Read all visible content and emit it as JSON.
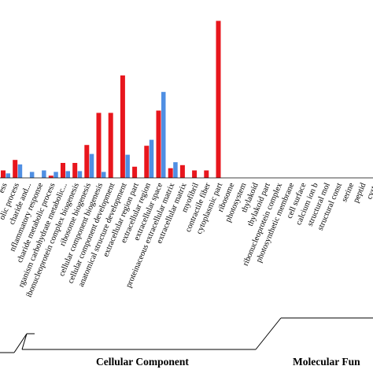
{
  "chart_data": {
    "type": "bar",
    "title": "",
    "xlabel": "",
    "ylabel": "",
    "ylim": [
      0,
      210
    ],
    "grid": false,
    "categories": [
      "ess",
      "olic process",
      "charide and...",
      "nflammatory response",
      "charide metabolic process",
      "rganism carbohydrate metabolic...",
      "ibonucleoprotein complex biogenesis",
      "ribosome biogenesis",
      "cellular component biogenesis",
      "cellular component development",
      "anatomical structure development",
      "extracellular region part",
      "extracellular region",
      "extracellular space",
      "proteinaceous extracellular matrix",
      "extracellular matrix",
      "myofibril",
      "contractile fiber",
      "cytoplasmic part",
      "ribosome",
      "photosystem",
      "thylakoid",
      "thylakoid part",
      "ribonucleoprotein complex",
      "photosynthetic membrane",
      "cell surface",
      "calcium ion b",
      "structural mol",
      "structural const",
      "serine",
      "peptid",
      "cyste"
    ],
    "series": [
      {
        "color": "#e8161d",
        "values": [
          10,
          24,
          0,
          0,
          3,
          20,
          20,
          44,
          87,
          87,
          137,
          15,
          43,
          90,
          13,
          17,
          10,
          10,
          210,
          0,
          0,
          0,
          0,
          0,
          0,
          0,
          0,
          0,
          0,
          0,
          0,
          0
        ]
      },
      {
        "color": "#4f8fe3",
        "values": [
          6,
          18,
          8,
          10,
          8,
          9,
          9,
          32,
          8,
          0,
          31,
          0,
          51,
          115,
          21,
          0,
          0,
          0,
          0,
          0,
          0,
          0,
          0,
          0,
          0,
          0,
          0,
          0,
          0,
          0,
          0,
          0
        ]
      }
    ],
    "groups": [
      {
        "label": "Cellular Component"
      },
      {
        "label": "Molecular Fun"
      }
    ]
  },
  "bars": [
    {
      "red": 28,
      "blue": 10
    },
    {
      "red": 0,
      "blue": 31
    },
    {
      "red": 0,
      "blue": 15
    },
    {
      "red": 2,
      "blue": 2
    },
    {
      "red": 0,
      "blue": 16
    },
    {
      "red": 34,
      "blue": 0
    },
    {
      "red": 65,
      "blue": 0
    },
    {
      "red": 0,
      "blue": 0
    }
  ]
}
